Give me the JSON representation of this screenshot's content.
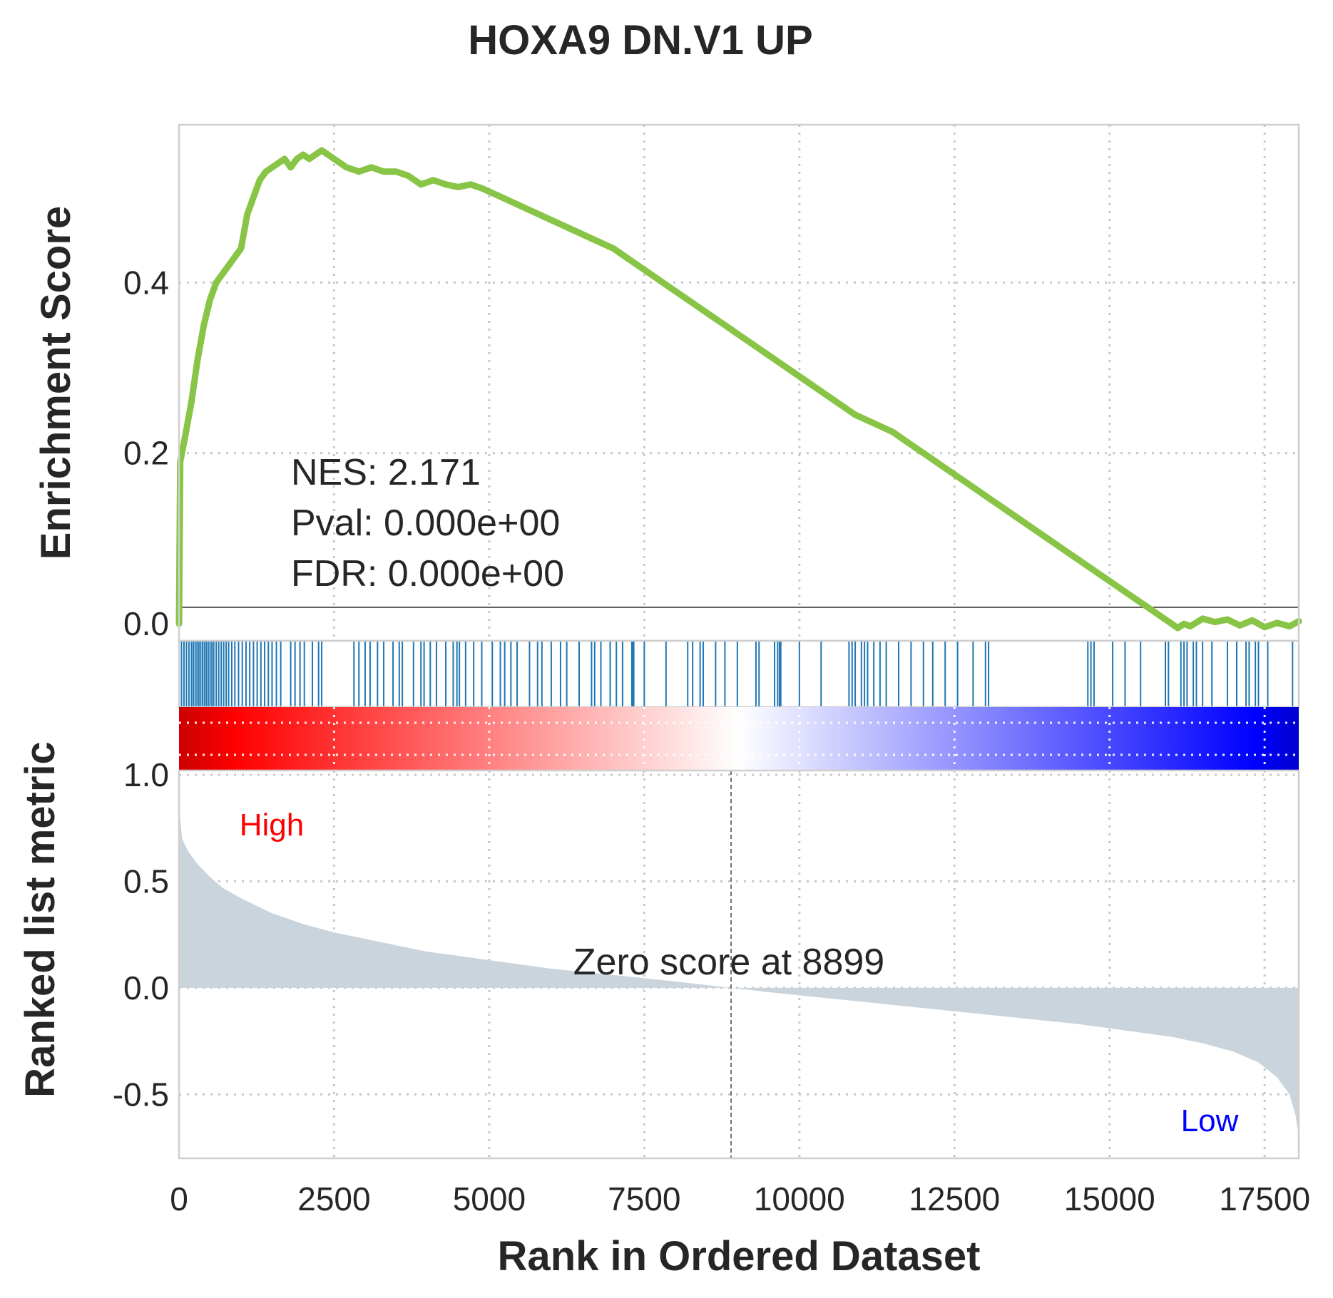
{
  "chart_data": {
    "type": "line",
    "title": "HOXA9 DN.V1 UP",
    "es_panel": {
      "ylabel": "Enrichment Score",
      "ylim": [
        -0.02,
        0.585
      ],
      "yticks": [
        "0.0",
        "0.2",
        "0.4"
      ],
      "line_color": "#88c445",
      "x": [
        0,
        20,
        100,
        200,
        300,
        400,
        500,
        600,
        700,
        800,
        900,
        1000,
        1100,
        1200,
        1300,
        1400,
        1500,
        1600,
        1700,
        1800,
        1900,
        2000,
        2100,
        2200,
        2300,
        2400,
        2500,
        2700,
        2900,
        3100,
        3300,
        3500,
        3700,
        3900,
        4100,
        4300,
        4500,
        4700,
        4900,
        5200,
        5500,
        5800,
        6100,
        6400,
        6700,
        7000,
        7300,
        7600,
        7900,
        8200,
        8500,
        8800,
        9100,
        9400,
        9700,
        10000,
        10300,
        10600,
        10900,
        11200,
        11500,
        11800,
        12100,
        12400,
        12700,
        13000,
        13300,
        13600,
        13900,
        14200,
        14500,
        14800,
        15100,
        15400,
        15700,
        16000,
        16100,
        16200,
        16300,
        16500,
        16700,
        16900,
        17100,
        17300,
        17500,
        17700,
        17900,
        18050
      ],
      "y": [
        0.0,
        0.19,
        0.22,
        0.26,
        0.31,
        0.35,
        0.38,
        0.4,
        0.41,
        0.42,
        0.43,
        0.44,
        0.48,
        0.5,
        0.52,
        0.53,
        0.535,
        0.54,
        0.545,
        0.535,
        0.545,
        0.55,
        0.545,
        0.55,
        0.555,
        0.55,
        0.545,
        0.535,
        0.53,
        0.535,
        0.53,
        0.53,
        0.525,
        0.515,
        0.52,
        0.515,
        0.512,
        0.515,
        0.51,
        0.5,
        0.49,
        0.48,
        0.47,
        0.46,
        0.45,
        0.44,
        0.425,
        0.41,
        0.395,
        0.38,
        0.365,
        0.35,
        0.335,
        0.32,
        0.305,
        0.29,
        0.275,
        0.26,
        0.245,
        0.235,
        0.225,
        0.21,
        0.195,
        0.18,
        0.165,
        0.15,
        0.135,
        0.12,
        0.105,
        0.09,
        0.075,
        0.06,
        0.045,
        0.03,
        0.015,
        0.0,
        -0.005,
        0.0,
        -0.003,
        0.006,
        0.002,
        0.005,
        -0.002,
        0.004,
        -0.004,
        0.001,
        -0.003,
        0.003
      ]
    },
    "annotations": [
      "NES: 2.171",
      "Pval: 0.000e+00",
      "FDR: 0.000e+00"
    ],
    "hits_panel": {
      "hit_color": "#1f77b4",
      "hits": [
        40,
        80,
        120,
        160,
        200,
        230,
        260,
        290,
        320,
        350,
        380,
        410,
        440,
        470,
        500,
        530,
        560,
        600,
        640,
        680,
        720,
        760,
        800,
        850,
        900,
        960,
        1020,
        1080,
        1140,
        1200,
        1260,
        1320,
        1380,
        1440,
        1500,
        1570,
        1640,
        1800,
        1870,
        1950,
        2020,
        2150,
        2250,
        2300,
        2820,
        2900,
        3000,
        3080,
        3200,
        3300,
        3450,
        3550,
        3600,
        3780,
        3900,
        3950,
        4050,
        4150,
        4300,
        4420,
        4480,
        4520,
        4620,
        4750,
        4880,
        5050,
        5180,
        5250,
        5350,
        5450,
        5650,
        5780,
        5850,
        6000,
        6150,
        6250,
        6450,
        6650,
        6700,
        6800,
        6950,
        7050,
        7150,
        7300,
        7320,
        7330,
        7500,
        7850,
        8200,
        8280,
        8400,
        8450,
        8650,
        8800,
        9000,
        9300,
        9350,
        9600,
        9650,
        9680,
        9700,
        10000,
        10350,
        10800,
        10850,
        10900,
        11000,
        11050,
        11100,
        11200,
        11300,
        11400,
        11600,
        11800,
        12000,
        12150,
        12350,
        12550,
        12800,
        13000,
        13050,
        14650,
        14700,
        14750,
        15050,
        15250,
        15500,
        15900,
        15950,
        16150,
        16200,
        16250,
        16350,
        16400,
        16500,
        16650,
        16900,
        17050,
        17200,
        17250,
        17350,
        17400,
        17550,
        17950
      ]
    },
    "colorbar": {
      "from": "#cc0000",
      "mid": "#ffffff",
      "to": "#0000cc"
    },
    "ranked_panel": {
      "ylabel": "Ranked list metric",
      "ylim": [
        -0.8,
        1.02
      ],
      "yticks": [
        "-0.5",
        "0.0",
        "0.5",
        "1.0"
      ],
      "fill_color": "#cad4dc",
      "x": [
        0,
        50,
        150,
        300,
        500,
        700,
        1000,
        1500,
        2000,
        2500,
        3000,
        4000,
        5000,
        6000,
        7000,
        8000,
        8899,
        9500,
        10500,
        11500,
        12500,
        13500,
        14500,
        15500,
        16000,
        16500,
        17000,
        17400,
        17700,
        17900,
        18000,
        18050
      ],
      "y": [
        0.84,
        0.7,
        0.64,
        0.58,
        0.52,
        0.47,
        0.42,
        0.35,
        0.3,
        0.26,
        0.23,
        0.17,
        0.13,
        0.09,
        0.06,
        0.03,
        0.0,
        -0.02,
        -0.05,
        -0.08,
        -0.11,
        -0.14,
        -0.17,
        -0.21,
        -0.23,
        -0.26,
        -0.3,
        -0.35,
        -0.42,
        -0.5,
        -0.6,
        -0.7
      ]
    },
    "zero_score_label": "Zero score at 8899",
    "zero_score_rank": 8899,
    "high_label": "High",
    "low_label": "Low",
    "high_color": "#ff0000",
    "low_color": "#0000ff",
    "xlabel": "Rank in Ordered Dataset",
    "xlim": [
      0,
      18050
    ],
    "xticks": [
      0,
      2500,
      5000,
      7500,
      10000,
      12500,
      15000,
      17500
    ]
  }
}
